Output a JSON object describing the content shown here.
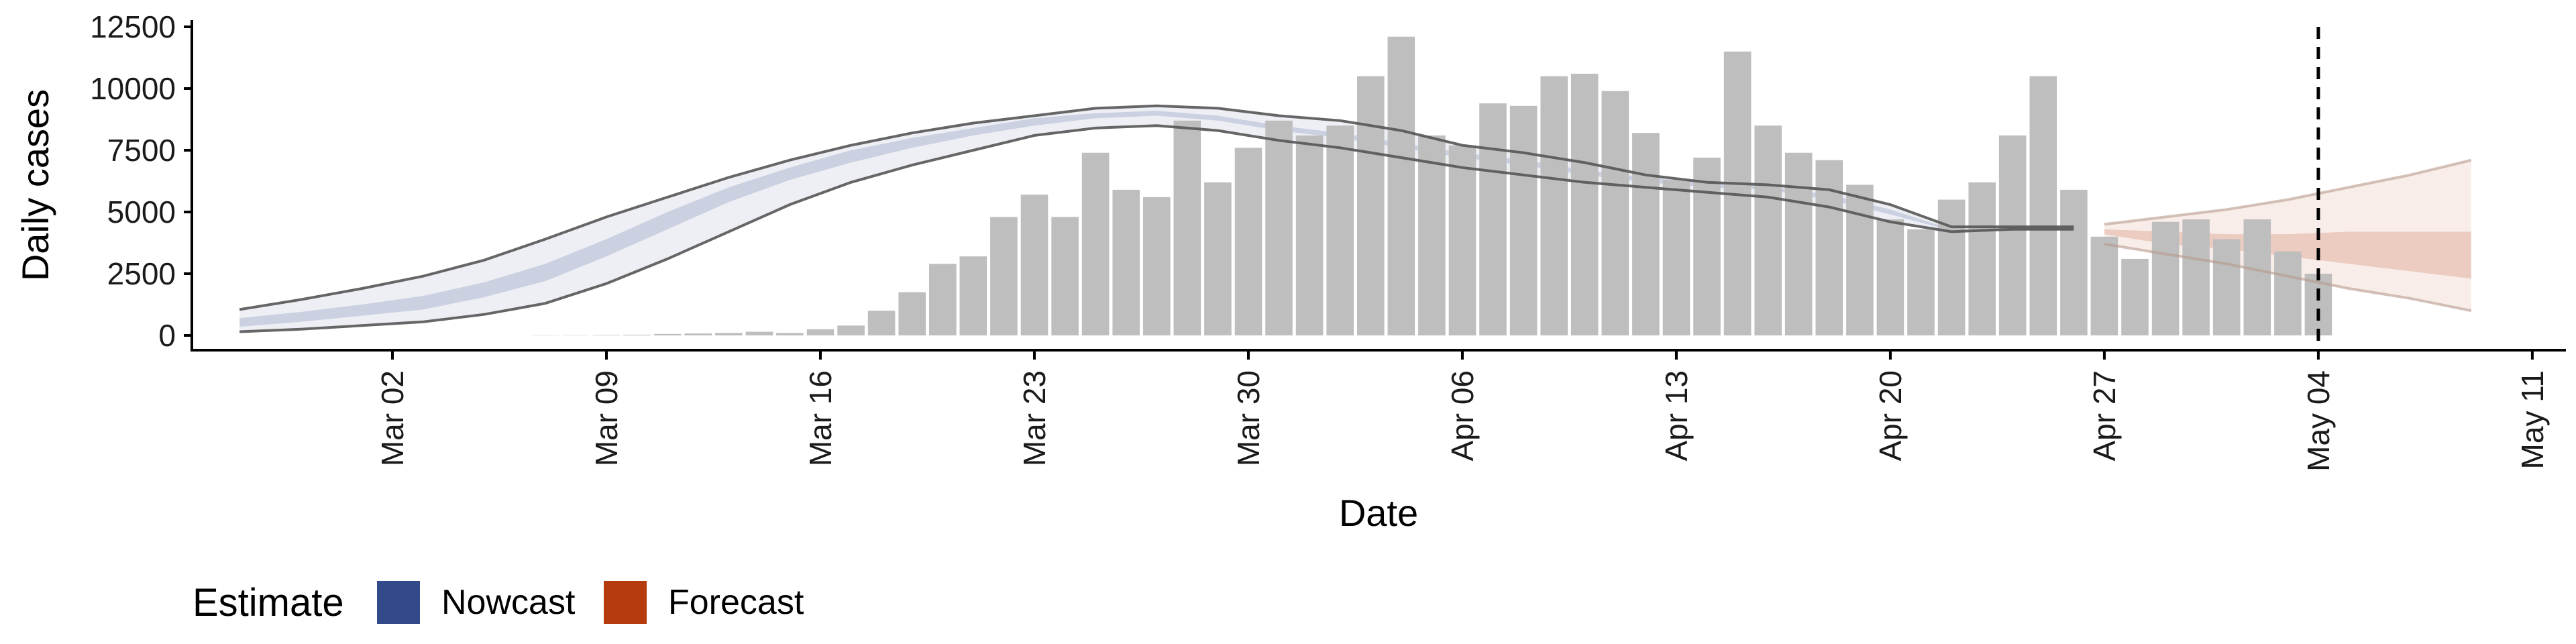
{
  "chart_data": {
    "type": "bar",
    "xlabel": "Date",
    "ylabel": "Daily cases",
    "ylim": [
      0,
      12500
    ],
    "y_ticks": [
      0,
      2500,
      5000,
      7500,
      10000,
      12500
    ],
    "y_tick_labels": [
      "0",
      "2500",
      "5000",
      "7500",
      "10000",
      "12500"
    ],
    "x_ticks": [
      "Mar 02",
      "Mar 09",
      "Mar 16",
      "Mar 23",
      "Mar 30",
      "Apr 06",
      "Apr 13",
      "Apr 20",
      "Apr 27",
      "May 04",
      "May 11"
    ],
    "vertical_dashed_line": "2020-05-04",
    "bars": {
      "dates": [
        "2020-03-07",
        "2020-03-08",
        "2020-03-09",
        "2020-03-10",
        "2020-03-11",
        "2020-03-12",
        "2020-03-13",
        "2020-03-14",
        "2020-03-15",
        "2020-03-16",
        "2020-03-17",
        "2020-03-18",
        "2020-03-19",
        "2020-03-20",
        "2020-03-21",
        "2020-03-22",
        "2020-03-23",
        "2020-03-24",
        "2020-03-25",
        "2020-03-26",
        "2020-03-27",
        "2020-03-28",
        "2020-03-29",
        "2020-03-30",
        "2020-03-31",
        "2020-04-01",
        "2020-04-02",
        "2020-04-03",
        "2020-04-04",
        "2020-04-05",
        "2020-04-06",
        "2020-04-07",
        "2020-04-08",
        "2020-04-09",
        "2020-04-10",
        "2020-04-11",
        "2020-04-12",
        "2020-04-13",
        "2020-04-14",
        "2020-04-15",
        "2020-04-16",
        "2020-04-17",
        "2020-04-18",
        "2020-04-19",
        "2020-04-20",
        "2020-04-21",
        "2020-04-22",
        "2020-04-23",
        "2020-04-24",
        "2020-04-25",
        "2020-04-26",
        "2020-04-27",
        "2020-04-28",
        "2020-04-29",
        "2020-04-30",
        "2020-05-01",
        "2020-05-02",
        "2020-05-03",
        "2020-05-04"
      ],
      "values": [
        10,
        10,
        20,
        30,
        60,
        80,
        100,
        150,
        100,
        250,
        400,
        1000,
        1750,
        2900,
        3200,
        4800,
        5700,
        4800,
        7400,
        5900,
        5600,
        8700,
        6200,
        7600,
        8700,
        8100,
        8500,
        10500,
        12100,
        8100,
        7700,
        9400,
        9300,
        10500,
        10600,
        9900,
        8200,
        6300,
        7200,
        11500,
        8500,
        7400,
        7100,
        6100,
        4700,
        4300,
        5500,
        6200,
        8100,
        10500,
        5900,
        4000,
        3100,
        4600,
        4700,
        3900,
        4700,
        3400,
        2500
      ],
      "color": "#bebebe"
    },
    "series": [
      {
        "name": "Nowcast",
        "color": "#32498a",
        "dates": [
          "2020-02-26",
          "2020-02-28",
          "2020-03-01",
          "2020-03-03",
          "2020-03-05",
          "2020-03-07",
          "2020-03-09",
          "2020-03-11",
          "2020-03-13",
          "2020-03-15",
          "2020-03-17",
          "2020-03-19",
          "2020-03-21",
          "2020-03-23",
          "2020-03-25",
          "2020-03-27",
          "2020-03-29",
          "2020-03-31",
          "2020-04-02",
          "2020-04-04",
          "2020-04-06",
          "2020-04-08",
          "2020-04-10",
          "2020-04-12",
          "2020-04-14",
          "2020-04-16",
          "2020-04-18",
          "2020-04-20",
          "2020-04-22",
          "2020-04-24",
          "2020-04-26"
        ],
        "outer_lower": [
          150,
          250,
          400,
          550,
          850,
          1300,
          2100,
          3100,
          4200,
          5300,
          6200,
          6900,
          7500,
          8100,
          8400,
          8500,
          8300,
          7900,
          7600,
          7200,
          6800,
          6500,
          6200,
          6000,
          5800,
          5600,
          5200,
          4600,
          4200,
          4300,
          4300
        ],
        "inner_lower": [
          350,
          550,
          800,
          1050,
          1550,
          2200,
          3200,
          4300,
          5400,
          6300,
          7000,
          7600,
          8100,
          8500,
          8800,
          8900,
          8700,
          8300,
          8000,
          7600,
          7200,
          6900,
          6500,
          6200,
          6000,
          5900,
          5500,
          4900,
          4250,
          4300,
          4300
        ],
        "inner_upper": [
          700,
          950,
          1250,
          1600,
          2150,
          2900,
          3900,
          5000,
          6000,
          6800,
          7500,
          8000,
          8400,
          8800,
          9000,
          9100,
          8900,
          8500,
          8200,
          7800,
          7400,
          7100,
          6700,
          6400,
          6200,
          6050,
          5700,
          5100,
          4300,
          4350,
          4350
        ],
        "outer_upper": [
          1050,
          1450,
          1900,
          2400,
          3050,
          3900,
          4800,
          5600,
          6400,
          7100,
          7700,
          8200,
          8600,
          8900,
          9200,
          9300,
          9200,
          8900,
          8700,
          8300,
          7700,
          7400,
          7000,
          6500,
          6200,
          6100,
          5900,
          5300,
          4400,
          4400,
          4400
        ]
      },
      {
        "name": "Forecast",
        "color": "#b53a0d",
        "dates": [
          "2020-04-27",
          "2020-04-29",
          "2020-05-01",
          "2020-05-03",
          "2020-05-05",
          "2020-05-07",
          "2020-05-09"
        ],
        "outer_lower": [
          3700,
          3300,
          2900,
          2400,
          1900,
          1500,
          1000
        ],
        "inner_lower": [
          4100,
          3700,
          3500,
          3200,
          2900,
          2600,
          2300
        ],
        "inner_upper": [
          4300,
          4200,
          4100,
          4100,
          4200,
          4200,
          4200
        ],
        "outer_upper": [
          4500,
          4800,
          5100,
          5500,
          6000,
          6500,
          7100
        ]
      }
    ],
    "legend": {
      "title": "Estimate",
      "placement": "bottom-left",
      "entries": [
        {
          "label": "Nowcast",
          "color": "#32498a"
        },
        {
          "label": "Forecast",
          "color": "#b53a0d"
        }
      ]
    }
  }
}
